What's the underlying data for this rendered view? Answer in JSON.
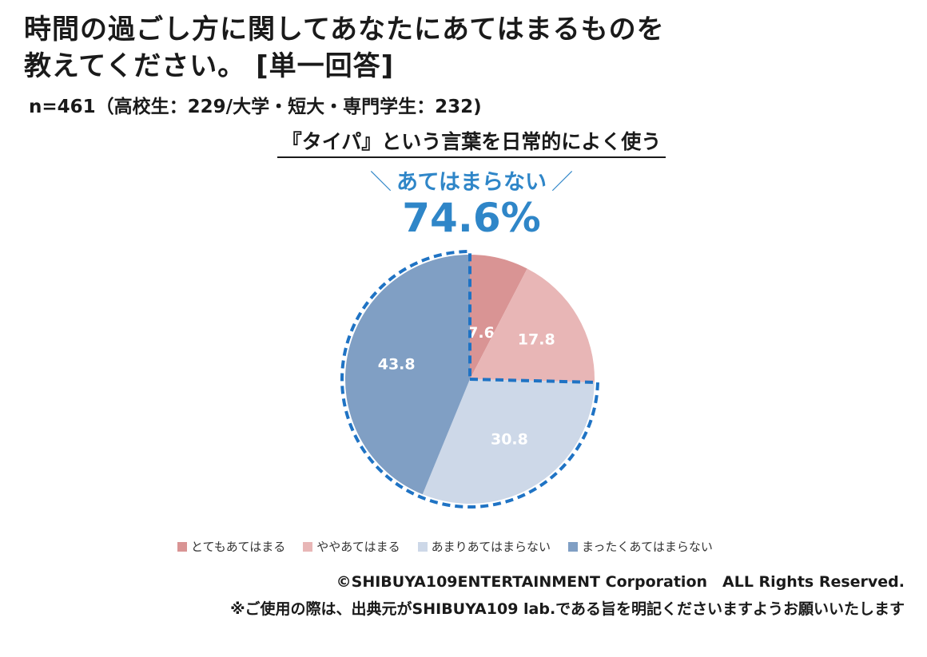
{
  "title_line1": "時間の過ごし方に関してあなたにあてはまるものを",
  "title_line2": "教えてください。 [単一回答]",
  "sample": "n=461（高校生：229/大学・短大・専門学生：232)",
  "callout": {
    "label": "あてはまらない",
    "value": "74.6%",
    "color": "#2f86c8"
  },
  "chart_data": {
    "type": "pie",
    "title": "『タイパ』という言葉を日常的によく使う",
    "slices": [
      {
        "label": "とてもあてはまる",
        "value": 7.6,
        "value_label": "7.6",
        "color": "#d99494"
      },
      {
        "label": "ややあてはまる",
        "value": 17.8,
        "value_label": "17.8",
        "color": "#e8b6b6"
      },
      {
        "label": "あまりあてはまらない",
        "value": 30.8,
        "value_label": "30.8",
        "color": "#cdd8e8"
      },
      {
        "label": "まったくあてはまらない",
        "value": 43.8,
        "value_label": "43.8",
        "color": "#809fc4"
      }
    ],
    "legend_position": "bottom",
    "highlight": {
      "label": "あてはまらない",
      "value": 74.6
    }
  },
  "copyright": "©SHIBUYA109ENTERTAINMENT Corporation　ALL Rights Reserved.",
  "note": "※ご使用の際は、出典元がSHIBUYA109 lab.である旨を明記くださいますようお願いいたします"
}
